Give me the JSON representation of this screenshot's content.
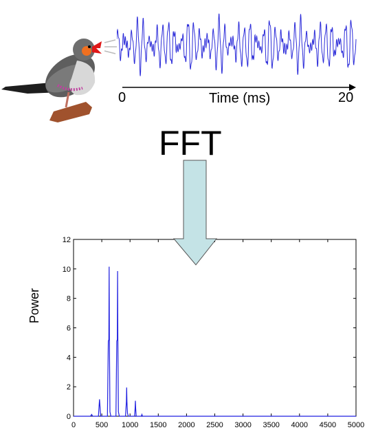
{
  "waveform": {
    "time_start": "0",
    "time_end": "20",
    "time_label": "Time (ms)",
    "color": "#2b2bd9"
  },
  "transform_label": "FFT",
  "arrow_color": "#c4e3e6",
  "chart_data": {
    "type": "line",
    "title": "",
    "xlabel": "",
    "ylabel": "Power",
    "xlim": [
      0,
      5000
    ],
    "ylim": [
      0,
      12
    ],
    "xticks": [
      0,
      500,
      1000,
      1500,
      2000,
      2500,
      3000,
      3500,
      4000,
      4500,
      5000
    ],
    "yticks": [
      0,
      2,
      4,
      6,
      8,
      10,
      12
    ],
    "series": [
      {
        "color": "#1f1fe0",
        "x": [
          0,
          300,
          320,
          340,
          440,
          460,
          480,
          600,
          615,
          625,
          630,
          635,
          645,
          660,
          750,
          765,
          775,
          780,
          785,
          795,
          810,
          920,
          935,
          940,
          945,
          955,
          970,
          1080,
          1090,
          1095,
          1100,
          1110,
          1200,
          1210,
          1220,
          5000
        ],
        "y": [
          0,
          0,
          0.12,
          0,
          0,
          1.15,
          0,
          0,
          5.1,
          5.2,
          10.15,
          5.2,
          0.3,
          0,
          0,
          5.1,
          5.2,
          9.85,
          5.2,
          0.3,
          0,
          0,
          1.0,
          1.95,
          1.0,
          0.2,
          0,
          0,
          0.55,
          1.05,
          0.55,
          0,
          0,
          0.12,
          0,
          0
        ]
      }
    ]
  }
}
